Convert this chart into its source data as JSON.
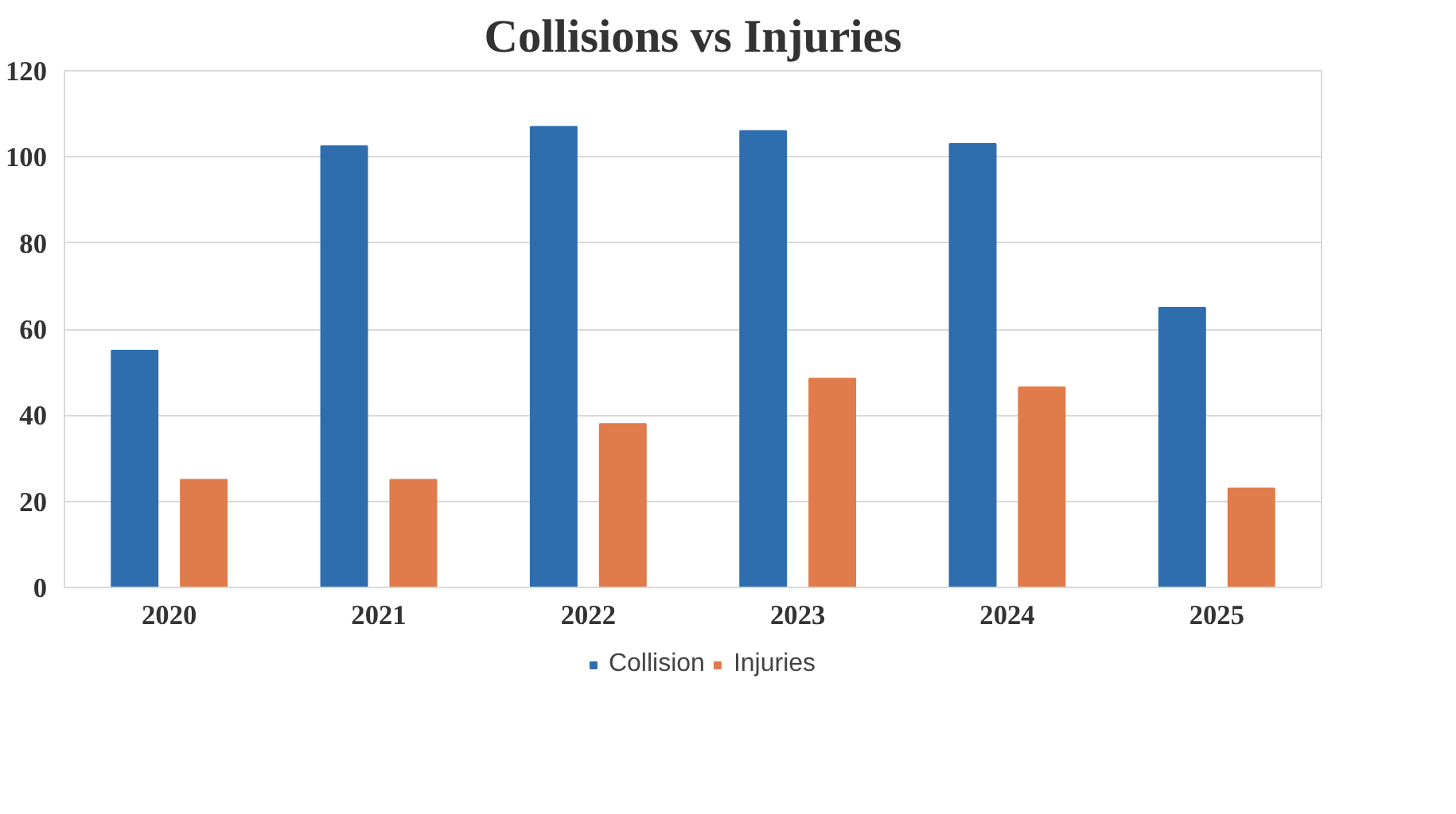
{
  "chart_data": {
    "type": "bar",
    "title": "Collisions vs Injuries",
    "categories": [
      "2020",
      "2021",
      "2022",
      "2023",
      "2024",
      "2025"
    ],
    "series": [
      {
        "name": "Collision",
        "color": "#2f6eae",
        "values": [
          55,
          102.5,
          107,
          106,
          103,
          65
        ]
      },
      {
        "name": "Injuries",
        "color": "#e07b4b",
        "values": [
          25,
          25,
          38,
          48.5,
          46.5,
          23
        ]
      }
    ],
    "ylim": [
      0,
      120
    ],
    "yticks": [
      0,
      20,
      40,
      60,
      80,
      100,
      120
    ],
    "grid": "y",
    "legend": "bottom"
  }
}
